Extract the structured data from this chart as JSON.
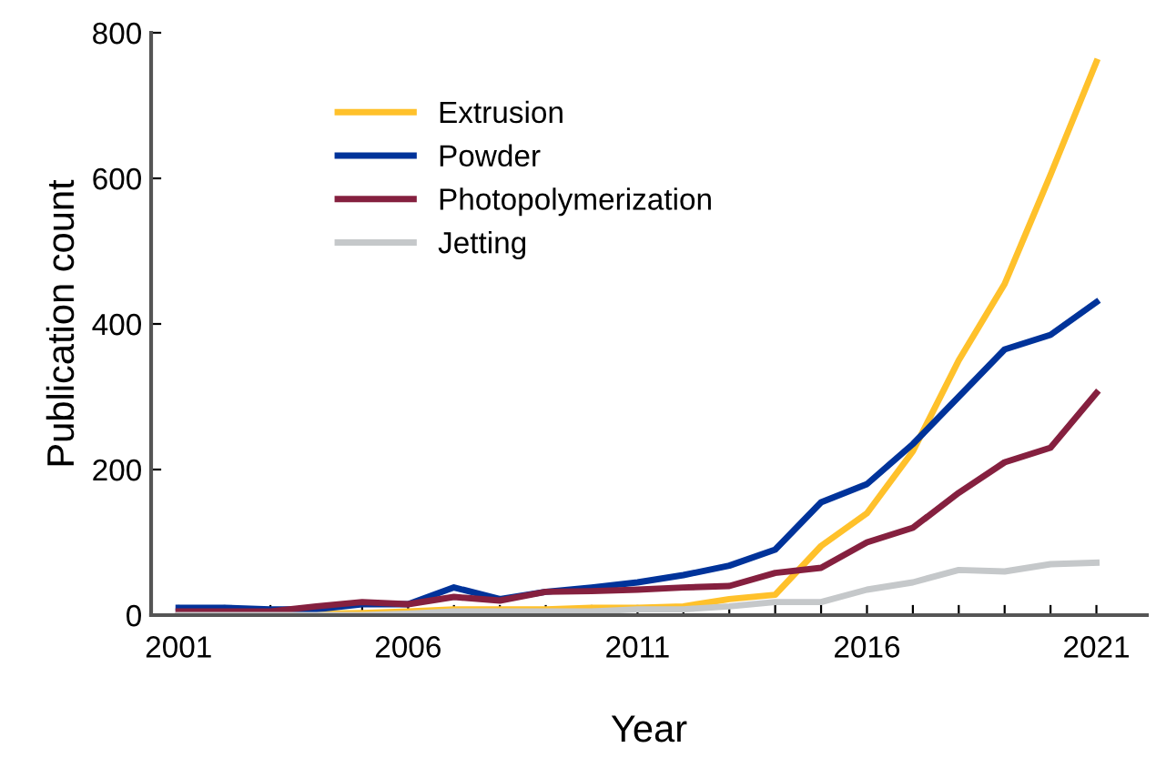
{
  "chart_data": {
    "type": "line",
    "xlabel": "Year",
    "ylabel": "Publication count",
    "x": [
      2001,
      2002,
      2003,
      2004,
      2005,
      2006,
      2007,
      2008,
      2009,
      2010,
      2011,
      2012,
      2013,
      2014,
      2015,
      2016,
      2017,
      2018,
      2019,
      2020,
      2021
    ],
    "series": [
      {
        "name": "Extrusion",
        "color": "#ffc12b",
        "values": [
          null,
          null,
          2,
          2,
          3,
          5,
          8,
          8,
          8,
          10,
          10,
          12,
          22,
          28,
          95,
          140,
          225,
          350,
          455,
          605,
          760
        ]
      },
      {
        "name": "Powder",
        "color": "#00339a",
        "values": [
          10,
          10,
          8,
          8,
          15,
          15,
          38,
          22,
          32,
          38,
          45,
          55,
          68,
          90,
          155,
          180,
          235,
          300,
          365,
          385,
          430
        ]
      },
      {
        "name": "Photopolymerization",
        "color": "#85203f",
        "values": [
          5,
          5,
          5,
          12,
          18,
          15,
          25,
          20,
          32,
          33,
          35,
          38,
          40,
          58,
          65,
          100,
          120,
          168,
          210,
          230,
          305
        ]
      },
      {
        "name": "Jetting",
        "color": "#c5c8ca",
        "values": [
          0,
          0,
          0,
          0,
          0,
          2,
          5,
          5,
          5,
          5,
          8,
          8,
          12,
          18,
          18,
          35,
          45,
          62,
          60,
          70,
          72
        ]
      }
    ],
    "xlim": [
      2000.4,
      2022.1
    ],
    "ylim": [
      0,
      800
    ],
    "yticks": [
      0,
      200,
      400,
      600,
      800
    ],
    "xticks": [
      2001,
      {
        "value": 2002,
        "label": null
      },
      {
        "value": 2003,
        "label": null
      },
      {
        "value": 2004,
        "label": null
      },
      {
        "value": 2005,
        "label": null
      },
      2006,
      {
        "value": 2007,
        "label": null
      },
      {
        "value": 2008,
        "label": null
      },
      {
        "value": 2009,
        "label": null
      },
      {
        "value": 2010,
        "label": null
      },
      2011,
      {
        "value": 2012,
        "label": null
      },
      {
        "value": 2013,
        "label": null
      },
      {
        "value": 2014,
        "label": null
      },
      {
        "value": 2015,
        "label": null
      },
      2016,
      {
        "value": 2017,
        "label": null
      },
      {
        "value": 2018,
        "label": null
      },
      {
        "value": 2019,
        "label": null
      },
      {
        "value": 2020,
        "label": null
      },
      2021
    ],
    "grid": false,
    "legend": "top left",
    "marker": "none",
    "line_style": "solid"
  }
}
